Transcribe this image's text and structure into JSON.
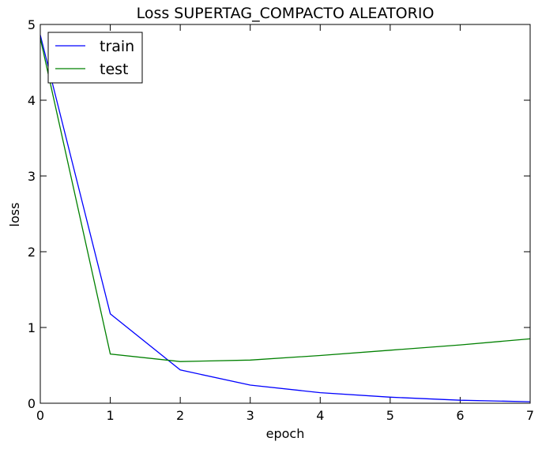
{
  "chart_data": {
    "type": "line",
    "title": "Loss SUPERTAG_COMPACTO ALEATORIO",
    "xlabel": "epoch",
    "ylabel": "loss",
    "xlim": [
      0,
      7
    ],
    "ylim": [
      0,
      5
    ],
    "xticks": [
      0,
      1,
      2,
      3,
      4,
      5,
      6,
      7
    ],
    "yticks": [
      0,
      1,
      2,
      3,
      4,
      5
    ],
    "x": [
      0,
      1,
      2,
      3,
      4,
      5,
      6,
      7
    ],
    "series": [
      {
        "name": "train",
        "color": "#0000ff",
        "values": [
          4.86,
          1.18,
          0.44,
          0.24,
          0.14,
          0.08,
          0.04,
          0.02
        ]
      },
      {
        "name": "test",
        "color": "#008000",
        "values": [
          4.82,
          0.65,
          0.55,
          0.57,
          0.63,
          0.7,
          0.77,
          0.85
        ]
      }
    ],
    "legend_position": "top-left",
    "grid": false
  }
}
